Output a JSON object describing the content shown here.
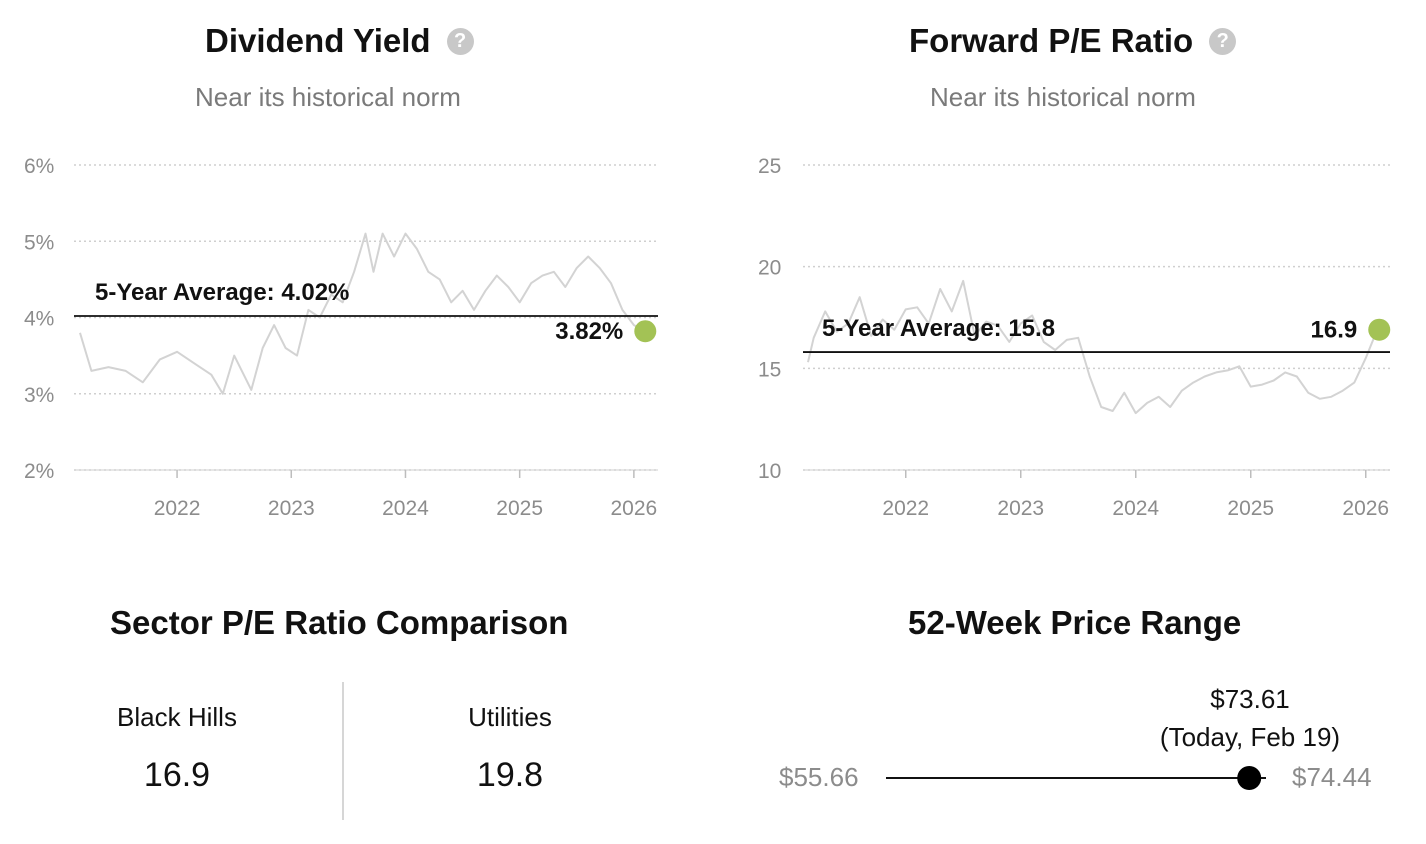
{
  "dividend_yield": {
    "title": "Dividend Yield",
    "subtitle": "Near its historical norm",
    "help_icon": "question-circle-icon",
    "avg_label": "5-Year Average: 4.02%",
    "current_label": "3.82%",
    "accent_color": "#a3c255",
    "line_color": "#d3d3d3"
  },
  "forward_pe": {
    "title": "Forward P/E Ratio",
    "subtitle": "Near its historical norm",
    "help_icon": "question-circle-icon",
    "avg_label": "5-Year Average: 15.8",
    "current_label": "16.9",
    "accent_color": "#a3c255",
    "line_color": "#d3d3d3"
  },
  "chart_data": [
    {
      "type": "line",
      "title": "Dividend Yield",
      "subtitle": "Near its historical norm",
      "y_ticks": [
        "2%",
        "3%",
        "4%",
        "5%",
        "6%"
      ],
      "x_ticks": [
        "2022",
        "2023",
        "2024",
        "2025",
        "2026"
      ],
      "ylim": [
        2,
        6
      ],
      "xlim": [
        2021.15,
        2026.15
      ],
      "average": 4.02,
      "average_label": "5-Year Average: 4.02%",
      "current": 3.82,
      "current_label": "3.82%",
      "series": [
        {
          "x": [
            2021.15,
            2021.25,
            2021.4,
            2021.55,
            2021.7,
            2021.85,
            2022.0,
            2022.15,
            2022.3,
            2022.4,
            2022.5,
            2022.65,
            2022.75,
            2022.85,
            2022.95,
            2023.05,
            2023.15,
            2023.25,
            2023.35,
            2023.45,
            2023.55,
            2023.65,
            2023.72,
            2023.8,
            2023.9,
            2024.0,
            2024.1,
            2024.2,
            2024.3,
            2024.4,
            2024.5,
            2024.6,
            2024.7,
            2024.8,
            2024.9,
            2025.0,
            2025.1,
            2025.2,
            2025.3,
            2025.4,
            2025.5,
            2025.6,
            2025.7,
            2025.8,
            2025.9,
            2026.0,
            2026.1
          ],
          "y": [
            3.8,
            3.3,
            3.35,
            3.3,
            3.15,
            3.45,
            3.55,
            3.4,
            3.25,
            3.0,
            3.5,
            3.05,
            3.6,
            3.9,
            3.6,
            3.5,
            4.1,
            4.0,
            4.3,
            4.2,
            4.6,
            5.1,
            4.6,
            5.1,
            4.8,
            5.1,
            4.9,
            4.6,
            4.5,
            4.2,
            4.35,
            4.1,
            4.35,
            4.55,
            4.4,
            4.2,
            4.45,
            4.55,
            4.6,
            4.4,
            4.65,
            4.8,
            4.65,
            4.45,
            4.1,
            3.9,
            3.82
          ]
        }
      ]
    },
    {
      "type": "line",
      "title": "Forward P/E Ratio",
      "subtitle": "Near its historical norm",
      "y_ticks": [
        "10",
        "15",
        "20",
        "25"
      ],
      "x_ticks": [
        "2022",
        "2023",
        "2024",
        "2025",
        "2026"
      ],
      "ylim": [
        10,
        25
      ],
      "xlim": [
        2021.15,
        2026.15
      ],
      "average": 15.8,
      "average_label": "5-Year Average: 15.8",
      "current": 16.9,
      "current_label": "16.9",
      "series": [
        {
          "x": [
            2021.15,
            2021.2,
            2021.3,
            2021.4,
            2021.5,
            2021.6,
            2021.7,
            2021.8,
            2021.9,
            2022.0,
            2022.1,
            2022.2,
            2022.3,
            2022.4,
            2022.5,
            2022.6,
            2022.7,
            2022.8,
            2022.9,
            2023.0,
            2023.1,
            2023.2,
            2023.3,
            2023.4,
            2023.5,
            2023.6,
            2023.7,
            2023.8,
            2023.9,
            2024.0,
            2024.1,
            2024.2,
            2024.3,
            2024.4,
            2024.5,
            2024.6,
            2024.7,
            2024.8,
            2024.9,
            2025.0,
            2025.1,
            2025.2,
            2025.3,
            2025.4,
            2025.5,
            2025.6,
            2025.7,
            2025.8,
            2025.9,
            2026.0,
            2026.1
          ],
          "y": [
            15.3,
            16.5,
            17.8,
            16.8,
            17.2,
            18.5,
            16.6,
            17.4,
            16.9,
            17.9,
            18.0,
            17.2,
            18.9,
            17.8,
            19.3,
            16.6,
            17.3,
            17.1,
            16.3,
            17.2,
            17.6,
            16.3,
            15.9,
            16.4,
            16.5,
            14.6,
            13.1,
            12.9,
            13.8,
            12.8,
            13.3,
            13.6,
            13.1,
            13.9,
            14.3,
            14.6,
            14.8,
            14.9,
            15.1,
            14.1,
            14.2,
            14.4,
            14.8,
            14.6,
            13.8,
            13.5,
            13.6,
            13.9,
            14.3,
            15.5,
            16.9
          ]
        }
      ]
    }
  ],
  "sector_comparison": {
    "title": "Sector P/E Ratio Comparison",
    "items": [
      {
        "name": "Black Hills",
        "value": "16.9"
      },
      {
        "name": "Utilities",
        "value": "19.8"
      }
    ]
  },
  "price_range": {
    "title": "52-Week Price Range",
    "low": "$55.66",
    "high": "$74.44",
    "current": "$73.61",
    "current_note": "(Today, Feb 19)",
    "low_value": 55.66,
    "high_value": 74.44,
    "current_value": 73.61
  }
}
